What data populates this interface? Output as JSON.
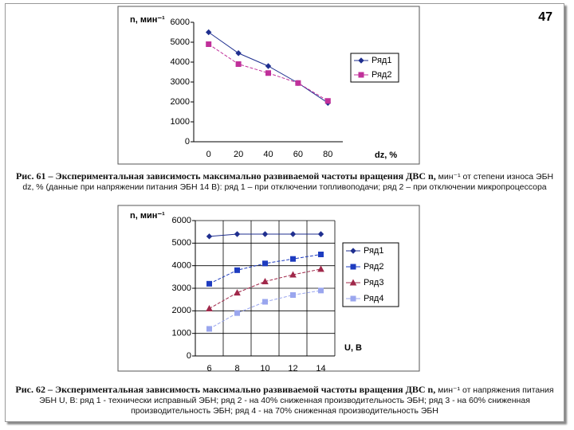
{
  "page_number": "47",
  "captions": [
    {
      "label": "Рис. 61 – Экспериментальная зависимость максимально развиваемой частоты вращения ДВС n,",
      "text": "мин⁻¹ от степени износа ЭБН dz, % (данные при напряжении питания ЭБН 14 В): ряд 1 – при отключении топливоподачи; ряд 2 – при отключении микропроцессора"
    },
    {
      "label": "Рис. 62 – Экспериментальная зависимость максимально развиваемой частоты вращения ДВС n,",
      "text": "мин⁻¹ от напряжения питания ЭБН U, В: ряд 1 - технически исправный ЭБН; ряд 2 - на 40% сниженная производительность ЭБН; ряд 3 - на 60% сниженная производительность ЭБН; ряд 4 - на 70% сниженная производительность ЭБН"
    }
  ],
  "chart_data": [
    {
      "type": "line",
      "y_label": "n, мин⁻¹",
      "x_label": "dz, %",
      "categories": [
        "0",
        "20",
        "40",
        "60",
        "80"
      ],
      "ylim": [
        0,
        6000
      ],
      "yticks": [
        0,
        1000,
        2000,
        3000,
        4000,
        5000,
        6000
      ],
      "grid": false,
      "series": [
        {
          "name": "Ряд1",
          "color": "#1f2f8f",
          "marker": "diamond",
          "values": [
            5500,
            4450,
            3800,
            2950,
            1950
          ]
        },
        {
          "name": "Ряд2",
          "color": "#c0309a",
          "marker": "square",
          "values": [
            4900,
            3900,
            3450,
            2950,
            2050
          ]
        }
      ]
    },
    {
      "type": "line",
      "y_label": "n, мин⁻¹",
      "x_label": "U, В",
      "categories": [
        "6",
        "8",
        "10",
        "12",
        "14"
      ],
      "ylim": [
        0,
        6000
      ],
      "yticks": [
        0,
        1000,
        2000,
        3000,
        4000,
        5000,
        6000
      ],
      "grid": true,
      "series": [
        {
          "name": "Ряд1",
          "color": "#1f2f8f",
          "marker": "diamond",
          "values": [
            5300,
            5400,
            5400,
            5400,
            5400
          ]
        },
        {
          "name": "Ряд2",
          "color": "#1e3cc0",
          "marker": "square",
          "values": [
            3200,
            3800,
            4100,
            4300,
            4500
          ]
        },
        {
          "name": "Ряд3",
          "color": "#a0284a",
          "marker": "triangle",
          "values": [
            2100,
            2800,
            3300,
            3600,
            3850
          ]
        },
        {
          "name": "Ряд4",
          "color": "#9aa6ee",
          "marker": "square",
          "values": [
            1200,
            1900,
            2400,
            2700,
            2900
          ]
        }
      ]
    }
  ]
}
